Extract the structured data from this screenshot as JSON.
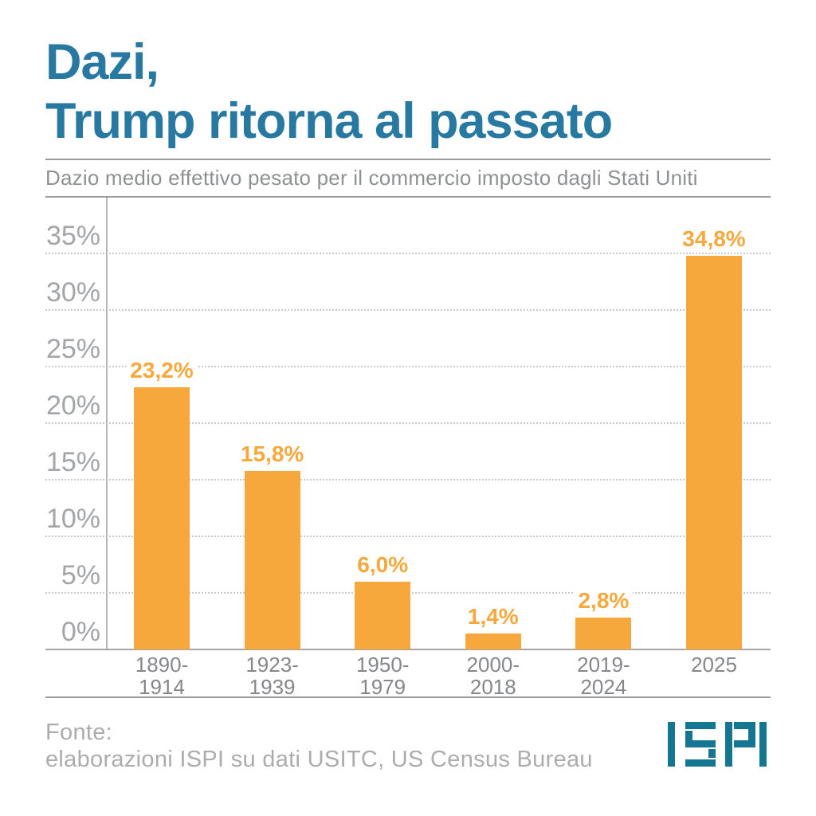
{
  "header": {
    "title_lines": [
      "Dazi,",
      "Trump ritorna al passato"
    ],
    "subtitle": "Dazio medio effettivo pesato per il commercio imposto dagli Stati Uniti"
  },
  "chart_data": {
    "type": "bar",
    "title": "Dazi, Trump ritorna al passato",
    "subtitle": "Dazio medio effettivo pesato per il commercio imposto dagli Stati Uniti",
    "categories": [
      "1890-\n1914",
      "1923-\n1939",
      "1950-\n1979",
      "2000-\n2018",
      "2019-\n2024",
      "2025"
    ],
    "values": [
      23.2,
      15.8,
      6.0,
      1.4,
      2.8,
      34.8
    ],
    "value_labels": [
      "23,2%",
      "15,8%",
      "6,0%",
      "1,4%",
      "2,8%",
      "34,8%"
    ],
    "y_ticks": [
      {
        "value": 0,
        "label": "0%"
      },
      {
        "value": 5,
        "label": "5%"
      },
      {
        "value": 10,
        "label": "10%"
      },
      {
        "value": 15,
        "label": "15%"
      },
      {
        "value": 20,
        "label": "20%"
      },
      {
        "value": 25,
        "label": "25%"
      },
      {
        "value": 30,
        "label": "30%"
      },
      {
        "value": 35,
        "label": "35%"
      }
    ],
    "ylim": [
      0,
      38
    ],
    "grid": "horizontal-dotted",
    "legend": "none",
    "xlabel": "",
    "ylabel": ""
  },
  "footer": {
    "source_lines": [
      "Fonte:",
      "elaborazioni ISPI su dati USITC, US Census Bureau"
    ],
    "logo_text": "ISPI"
  },
  "colors": {
    "title": "#2879A2",
    "subtitle": "#8E9092",
    "axis_labels": "#A3A5A8",
    "category_labels": "#85878A",
    "bar": "#F6A83D",
    "value_labels": "#F6A83D",
    "footer_text": "#ACACAE",
    "logo": "#147690"
  }
}
